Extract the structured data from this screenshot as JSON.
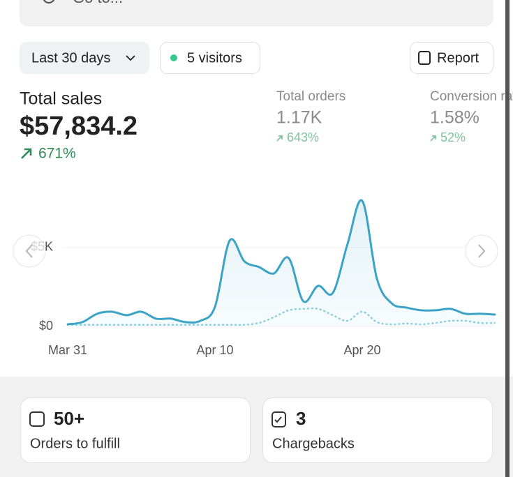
{
  "search": {
    "placeholder": "Go to..."
  },
  "filters": {
    "date_range": "Last 30 days",
    "visitors": "5 visitors",
    "report": "Report"
  },
  "metrics": [
    {
      "label": "Total sales",
      "value": "$57,834.2",
      "change": "671%"
    },
    {
      "label": "Total orders",
      "value": "1.17K",
      "change": "643%"
    },
    {
      "label": "Conversion rate",
      "value": "1.58%",
      "change": "52%"
    }
  ],
  "chart_data": {
    "type": "line",
    "categories": [
      "Mar 31",
      null,
      null,
      null,
      null,
      null,
      null,
      null,
      null,
      null,
      "Apr 10",
      null,
      null,
      null,
      null,
      null,
      null,
      null,
      null,
      null,
      "Apr 20",
      null,
      null,
      null,
      null,
      null,
      null,
      null,
      null,
      null
    ],
    "series": [
      {
        "color": "#3aa3c6",
        "values": [
          130,
          270,
          800,
          930,
          710,
          930,
          490,
          490,
          270,
          350,
          1240,
          5440,
          4120,
          3760,
          3360,
          4340,
          1590,
          2570,
          2120,
          5220,
          7960,
          3010,
          1460,
          1190,
          1020,
          1020,
          1110,
          800,
          800,
          750
        ]
      },
      {
        "color": "#8fcfdf",
        "dashed": true,
        "values": [
          100,
          100,
          100,
          100,
          100,
          100,
          100,
          100,
          100,
          100,
          100,
          100,
          100,
          220,
          580,
          1020,
          1110,
          1110,
          710,
          350,
          930,
          270,
          130,
          180,
          130,
          220,
          350,
          350,
          220,
          220
        ]
      }
    ],
    "ylim": [
      0,
      8800
    ],
    "yticks": [
      {
        "value": 0,
        "label": "$0"
      },
      {
        "value": 5000,
        "label": "$5K"
      }
    ],
    "grid": true,
    "area": true
  },
  "cards": [
    {
      "value": "50+",
      "label": "Orders to fulfill"
    },
    {
      "value": "3",
      "label": "Chargebacks"
    }
  ]
}
